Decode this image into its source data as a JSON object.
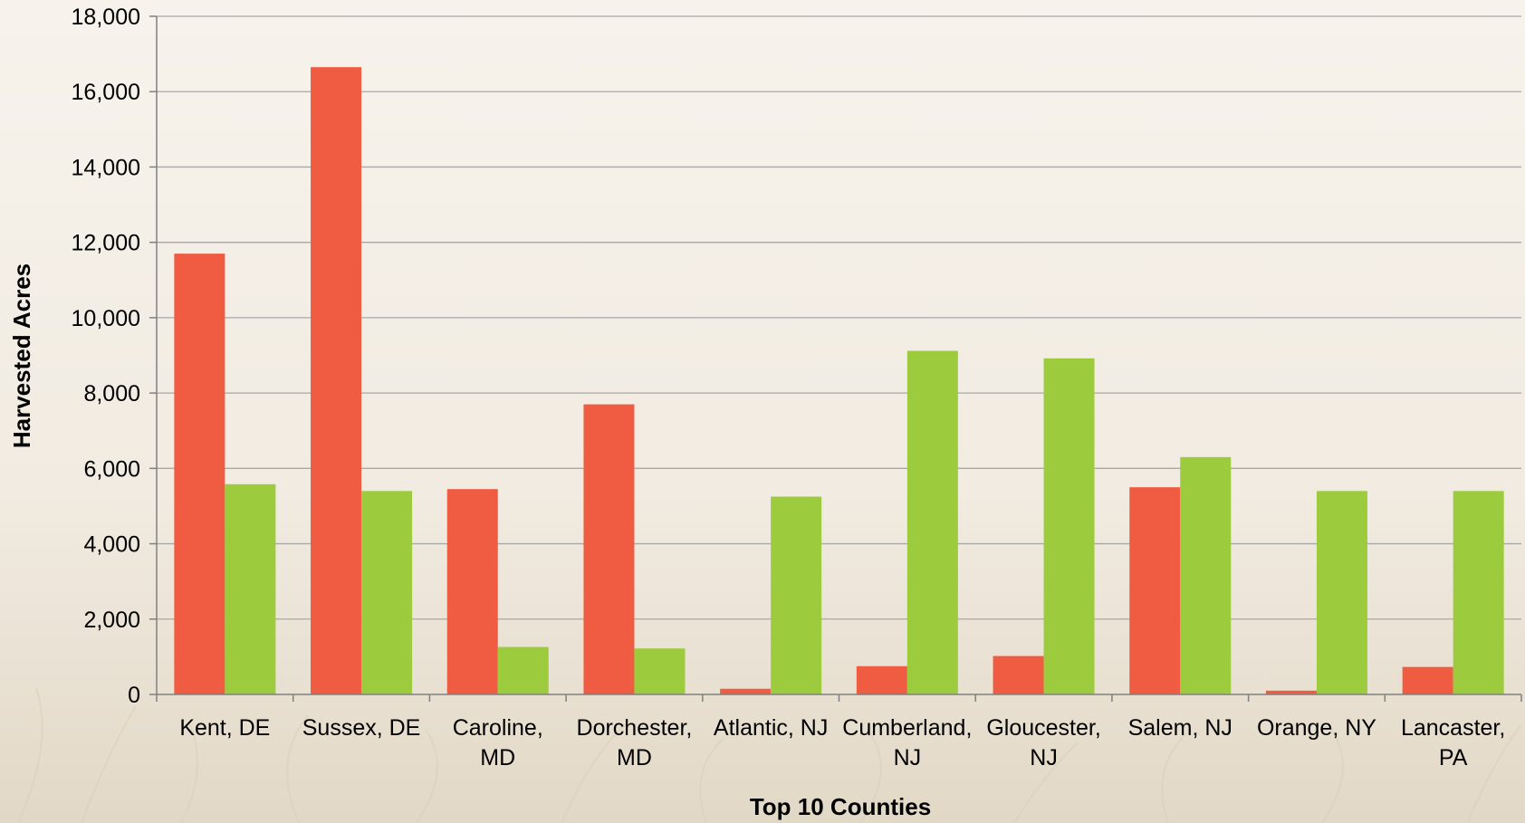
{
  "chart_data": {
    "type": "bar",
    "title": "",
    "xlabel": "Top 10 Counties",
    "ylabel": "Harvested Acres",
    "ylim": [
      0,
      18000
    ],
    "yticks": [
      0,
      2000,
      4000,
      6000,
      8000,
      10000,
      12000,
      14000,
      16000,
      18000
    ],
    "ytick_labels": [
      "0",
      "2,000",
      "4,000",
      "6,000",
      "8,000",
      "10,000",
      "12,000",
      "14,000",
      "16,000",
      "18,000"
    ],
    "grid": "horizontal",
    "categories": [
      [
        "Kent, DE"
      ],
      [
        "Sussex, DE"
      ],
      [
        "Caroline,",
        "MD"
      ],
      [
        "Dorchester,",
        "MD"
      ],
      [
        "Atlantic, NJ"
      ],
      [
        "Cumberland,",
        "NJ"
      ],
      [
        "Gloucester,",
        "NJ"
      ],
      [
        "Salem, NJ"
      ],
      [
        "Orange, NY"
      ],
      [
        "Lancaster,",
        "PA"
      ]
    ],
    "series": [
      {
        "color": "#f05c41",
        "values": [
          11700,
          16650,
          5450,
          7700,
          150,
          750,
          1020,
          5500,
          100,
          730
        ]
      },
      {
        "color": "#9ccc3d",
        "values": [
          5580,
          5400,
          1260,
          1220,
          5250,
          9120,
          8920,
          6300,
          5400,
          5400
        ]
      }
    ]
  }
}
